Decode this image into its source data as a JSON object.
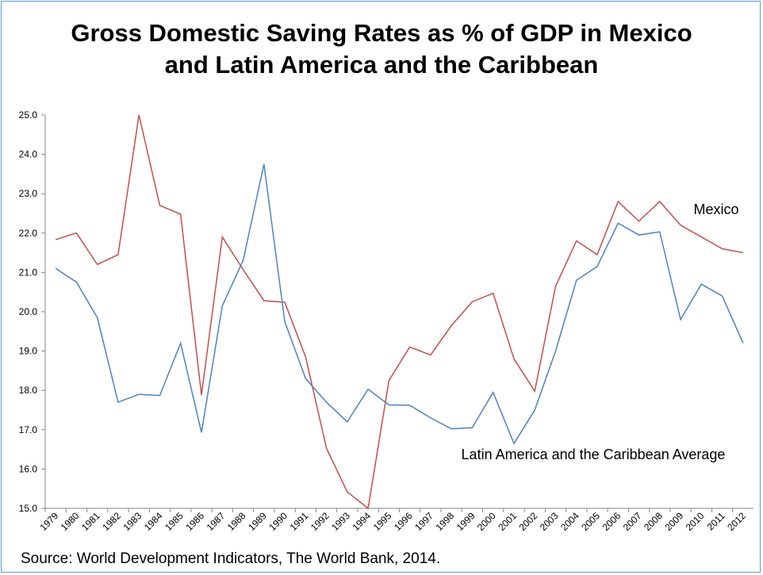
{
  "chart_data": {
    "type": "line",
    "title": "Gross Domestic Saving Rates as % of GDP in Mexico and Latin America and the Caribbean",
    "source": "Source: World Development Indicators, The World Bank, 2014.",
    "categories": [
      "1979",
      "1980",
      "1981",
      "1982",
      "1983",
      "1984",
      "1985",
      "1986",
      "1987",
      "1988",
      "1989",
      "1990",
      "1991",
      "1992",
      "1993",
      "1994",
      "1995",
      "1996",
      "1997",
      "1998",
      "1999",
      "2000",
      "2001",
      "2002",
      "2003",
      "2004",
      "2005",
      "2006",
      "2007",
      "2008",
      "2009",
      "2010",
      "2011",
      "2012"
    ],
    "series": [
      {
        "name": "Mexico",
        "color": "#c0504d",
        "values": [
          21.83,
          22.0,
          21.2,
          21.45,
          25.0,
          22.7,
          22.48,
          17.88,
          21.9,
          21.07,
          20.28,
          20.24,
          18.85,
          16.53,
          15.42,
          15.0,
          18.25,
          19.1,
          18.9,
          19.65,
          20.25,
          20.47,
          18.8,
          17.98,
          20.65,
          21.8,
          21.45,
          22.8,
          22.3,
          22.8,
          22.2,
          21.9,
          21.6,
          21.5
        ]
      },
      {
        "name": "Latin America and the Caribbean Average",
        "color": "#4f81bd",
        "values": [
          21.1,
          20.75,
          19.85,
          17.7,
          17.9,
          17.87,
          19.2,
          16.93,
          20.15,
          21.3,
          23.75,
          19.75,
          18.3,
          17.7,
          17.2,
          18.03,
          17.63,
          17.62,
          17.3,
          17.02,
          17.05,
          17.95,
          16.65,
          17.5,
          19.0,
          20.8,
          21.15,
          22.25,
          21.95,
          22.03,
          19.8,
          20.7,
          20.4,
          19.2
        ]
      }
    ],
    "ylim": [
      15,
      25
    ],
    "yticks": [
      {
        "value": 15,
        "label": "15.0"
      },
      {
        "value": 16,
        "label": "16.0"
      },
      {
        "value": 17,
        "label": "17.0"
      },
      {
        "value": 18,
        "label": "18.0"
      },
      {
        "value": 19,
        "label": "19.0"
      },
      {
        "value": 20,
        "label": "20.0"
      },
      {
        "value": 21,
        "label": "21.0"
      },
      {
        "value": 22,
        "label": "22.0"
      },
      {
        "value": 23,
        "label": "23.0"
      },
      {
        "value": 24,
        "label": "24.0"
      },
      {
        "value": 25,
        "label": "25.0"
      }
    ],
    "grid": false
  }
}
